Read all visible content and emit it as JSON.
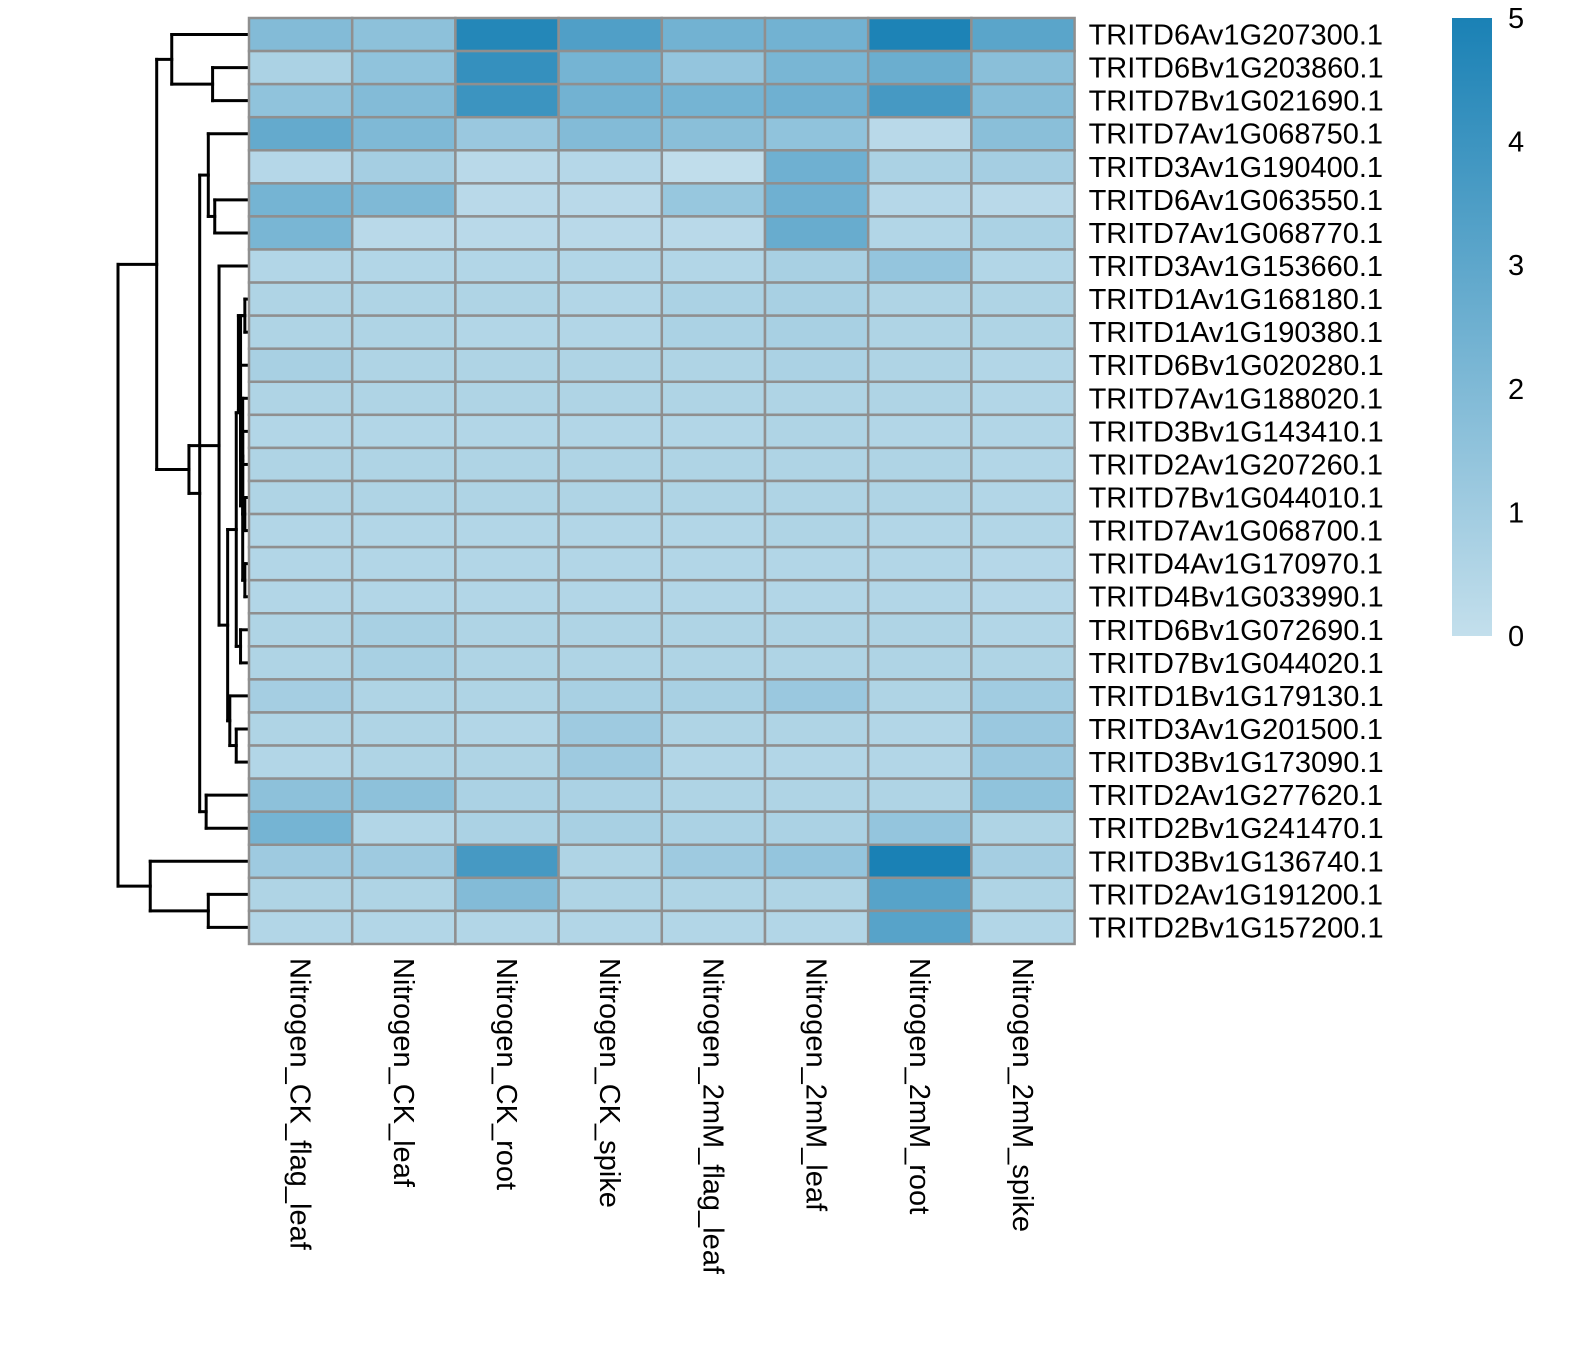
{
  "chart_data": {
    "type": "heatmap",
    "title": "",
    "xlabel": "",
    "ylabel": "",
    "columns": [
      "Nitrogen_CK_flag_leaf",
      "Nitrogen_CK_leaf",
      "Nitrogen_CK_root",
      "Nitrogen_CK_spike",
      "Nitrogen_2mM_flag_leaf",
      "Nitrogen_2mM_leaf",
      "Nitrogen_2mM_root",
      "Nitrogen_2mM_spike"
    ],
    "rows": [
      "TRITD6Av1G207300.1",
      "TRITD6Bv1G203860.1",
      "TRITD7Bv1G021690.1",
      "TRITD7Av1G068750.1",
      "TRITD3Av1G190400.1",
      "TRITD6Av1G063550.1",
      "TRITD7Av1G068770.1",
      "TRITD3Av1G153660.1",
      "TRITD1Av1G168180.1",
      "TRITD1Av1G190380.1",
      "TRITD6Bv1G020280.1",
      "TRITD7Av1G188020.1",
      "TRITD3Bv1G143410.1",
      "TRITD2Av1G207260.1",
      "TRITD7Bv1G044010.1",
      "TRITD7Av1G068700.1",
      "TRITD4Av1G170970.1",
      "TRITD4Bv1G033990.1",
      "TRITD6Bv1G072690.1",
      "TRITD7Bv1G044020.1",
      "TRITD1Bv1G179130.1",
      "TRITD3Av1G201500.1",
      "TRITD3Bv1G173090.1",
      "TRITD2Av1G277620.1",
      "TRITD2Bv1G241470.1",
      "TRITD3Bv1G136740.1",
      "TRITD2Av1G191200.1",
      "TRITD2Bv1G157200.1"
    ],
    "values": [
      [
        1.9,
        1.6,
        4.7,
        3.4,
        2.4,
        2.4,
        4.9,
        3.1
      ],
      [
        0.7,
        1.5,
        4.2,
        2.3,
        1.4,
        2.2,
        2.6,
        1.7
      ],
      [
        1.5,
        1.9,
        4.0,
        2.4,
        2.3,
        2.5,
        3.7,
        1.8
      ],
      [
        2.8,
        2.0,
        1.2,
        1.9,
        1.7,
        1.5,
        0.3,
        1.7
      ],
      [
        0.4,
        0.9,
        0.3,
        0.4,
        0.1,
        2.5,
        0.7,
        0.9
      ],
      [
        2.3,
        2.0,
        0.3,
        0.3,
        1.3,
        2.5,
        0.4,
        0.3
      ],
      [
        2.2,
        0.3,
        0.3,
        0.3,
        0.3,
        2.7,
        0.5,
        0.7
      ],
      [
        0.5,
        0.5,
        0.5,
        0.5,
        0.5,
        0.8,
        1.4,
        0.5
      ],
      [
        0.6,
        0.6,
        0.6,
        0.5,
        0.7,
        0.8,
        0.6,
        0.6
      ],
      [
        0.6,
        0.6,
        0.5,
        0.5,
        0.7,
        0.8,
        0.6,
        0.6
      ],
      [
        0.8,
        0.6,
        0.6,
        0.6,
        0.6,
        0.7,
        0.6,
        0.5
      ],
      [
        0.6,
        0.6,
        0.6,
        0.6,
        0.6,
        0.6,
        0.6,
        0.5
      ],
      [
        0.5,
        0.5,
        0.5,
        0.5,
        0.5,
        0.6,
        0.5,
        0.5
      ],
      [
        0.6,
        0.6,
        0.6,
        0.6,
        0.6,
        0.6,
        0.6,
        0.5
      ],
      [
        0.6,
        0.6,
        0.6,
        0.6,
        0.6,
        0.6,
        0.6,
        0.5
      ],
      [
        0.5,
        0.5,
        0.5,
        0.5,
        0.5,
        0.6,
        0.5,
        0.5
      ],
      [
        0.5,
        0.5,
        0.5,
        0.5,
        0.5,
        0.5,
        0.5,
        0.4
      ],
      [
        0.5,
        0.5,
        0.5,
        0.5,
        0.5,
        0.5,
        0.5,
        0.4
      ],
      [
        0.6,
        0.8,
        0.6,
        0.6,
        0.6,
        0.6,
        0.6,
        0.5
      ],
      [
        0.6,
        0.8,
        0.6,
        0.6,
        0.6,
        0.6,
        0.6,
        0.6
      ],
      [
        0.9,
        0.6,
        0.6,
        0.8,
        0.8,
        1.2,
        0.6,
        1.0
      ],
      [
        0.6,
        0.6,
        0.5,
        1.1,
        0.6,
        0.6,
        0.5,
        1.2
      ],
      [
        0.5,
        0.6,
        0.6,
        1.1,
        0.5,
        0.5,
        0.5,
        1.2
      ],
      [
        1.6,
        1.6,
        0.7,
        0.7,
        0.6,
        0.6,
        0.6,
        1.5
      ],
      [
        2.3,
        0.5,
        0.7,
        0.8,
        0.7,
        0.7,
        1.4,
        0.6
      ],
      [
        1.1,
        1.1,
        3.7,
        0.6,
        1.1,
        1.4,
        5.0,
        0.9
      ],
      [
        0.6,
        0.6,
        1.9,
        0.6,
        0.6,
        0.6,
        3.2,
        0.6
      ],
      [
        0.5,
        0.5,
        0.5,
        0.5,
        0.5,
        0.5,
        3.2,
        0.5
      ]
    ],
    "scale": {
      "min": 0,
      "max": 5,
      "ticks": [
        "0",
        "1",
        "2",
        "3",
        "4",
        "5"
      ],
      "low_color": "#c3dfec",
      "high_color": "#1a81b5"
    },
    "cell_border_color": "#8f8f8f",
    "row_dendrogram": {
      "merges": [
        [
          -9,
          -10,
          0.01
        ],
        [
          -15,
          -16,
          0.01
        ],
        [
          -17,
          -18,
          0.01
        ],
        [
          -12,
          2,
          0.02
        ],
        [
          -13,
          3,
          0.02
        ],
        [
          -14,
          4,
          0.02
        ],
        [
          5,
          1,
          0.03
        ],
        [
          -11,
          6,
          0.03
        ],
        [
          7,
          1.3,
          0.04
        ],
        [
          -19,
          -20,
          0.03
        ],
        [
          8,
          10,
          0.05
        ],
        [
          -22,
          -23,
          0.05
        ],
        [
          -21,
          12,
          0.08
        ],
        [
          11,
          13,
          0.09
        ],
        [
          -8,
          14,
          0.13
        ],
        [
          -6,
          -7,
          0.15
        ],
        [
          -4,
          16,
          0.18
        ],
        [
          -24,
          -25,
          0.19
        ],
        [
          17,
          18,
          0.22
        ],
        [
          15,
          19,
          0.27
        ],
        [
          -2,
          -3,
          0.16
        ],
        [
          -1,
          21,
          0.35
        ],
        [
          -27,
          -28,
          0.18
        ],
        [
          -26,
          23,
          0.45
        ],
        [
          20,
          22,
          0.42
        ],
        [
          25,
          24,
          0.6
        ],
        [
          26,
          0,
          1.0
        ]
      ]
    }
  }
}
